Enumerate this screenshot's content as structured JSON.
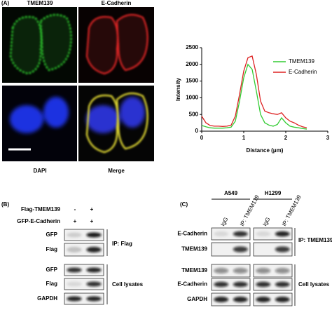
{
  "panel_a": {
    "label": "(A)",
    "images": [
      "TMEM139",
      "E-Cadherin",
      "DAPI",
      "Merge"
    ]
  },
  "chart_data": {
    "type": "line",
    "xlabel": "Distance (μm)",
    "ylabel": "Intensity",
    "x": [
      0,
      0.1,
      0.2,
      0.3,
      0.4,
      0.5,
      0.6,
      0.7,
      0.8,
      0.9,
      1.0,
      1.1,
      1.2,
      1.3,
      1.4,
      1.5,
      1.6,
      1.7,
      1.8,
      1.9,
      2.0,
      2.1,
      2.2,
      2.3,
      2.4,
      2.5
    ],
    "series": [
      {
        "name": "TMEM139",
        "color": "#33cc33",
        "values": [
          170,
          130,
          100,
          90,
          90,
          90,
          100,
          120,
          300,
          900,
          1600,
          2000,
          1850,
          1200,
          500,
          250,
          180,
          150,
          200,
          400,
          250,
          150,
          120,
          100,
          80,
          60
        ]
      },
      {
        "name": "E-Cadherin",
        "color": "#dd2222",
        "values": [
          450,
          250,
          170,
          150,
          150,
          140,
          150,
          180,
          450,
          1100,
          1800,
          2200,
          2250,
          1700,
          900,
          600,
          550,
          520,
          500,
          550,
          400,
          300,
          250,
          180,
          130,
          100
        ]
      }
    ],
    "xlim": [
      0,
      3
    ],
    "xticks": [
      0,
      1,
      2,
      3
    ],
    "ylim": [
      0,
      2500
    ],
    "yticks": [
      0,
      500,
      1000,
      1500,
      2000,
      2500
    ],
    "legend": "upper right"
  },
  "panel_b": {
    "label": "(B)",
    "conditions": [
      {
        "name": "Flag-TMEM139",
        "marks": [
          "-",
          "+"
        ]
      },
      {
        "name": "GFP-E-Cadherin",
        "marks": [
          "+",
          "+"
        ]
      }
    ],
    "ip_rows": [
      "GFP",
      "Flag"
    ],
    "ip_label": "IP: Flag",
    "lysate_rows": [
      "GFP",
      "Flag",
      "GAPDH"
    ],
    "lysate_label": "Cell lysates"
  },
  "panel_c": {
    "label": "(C)",
    "cell_lines": [
      "A549",
      "H1299"
    ],
    "lanes": [
      "IgG",
      "IP: TMEM139",
      "IgG",
      "IP: TMEM139"
    ],
    "ip_rows": [
      "E-Cadherin",
      "TMEM139"
    ],
    "ip_label": "IP: TMEM139",
    "lysate_rows": [
      "TMEM139",
      "E-Cadherin",
      "GAPDH"
    ],
    "lysate_label": "Cell lysates"
  }
}
